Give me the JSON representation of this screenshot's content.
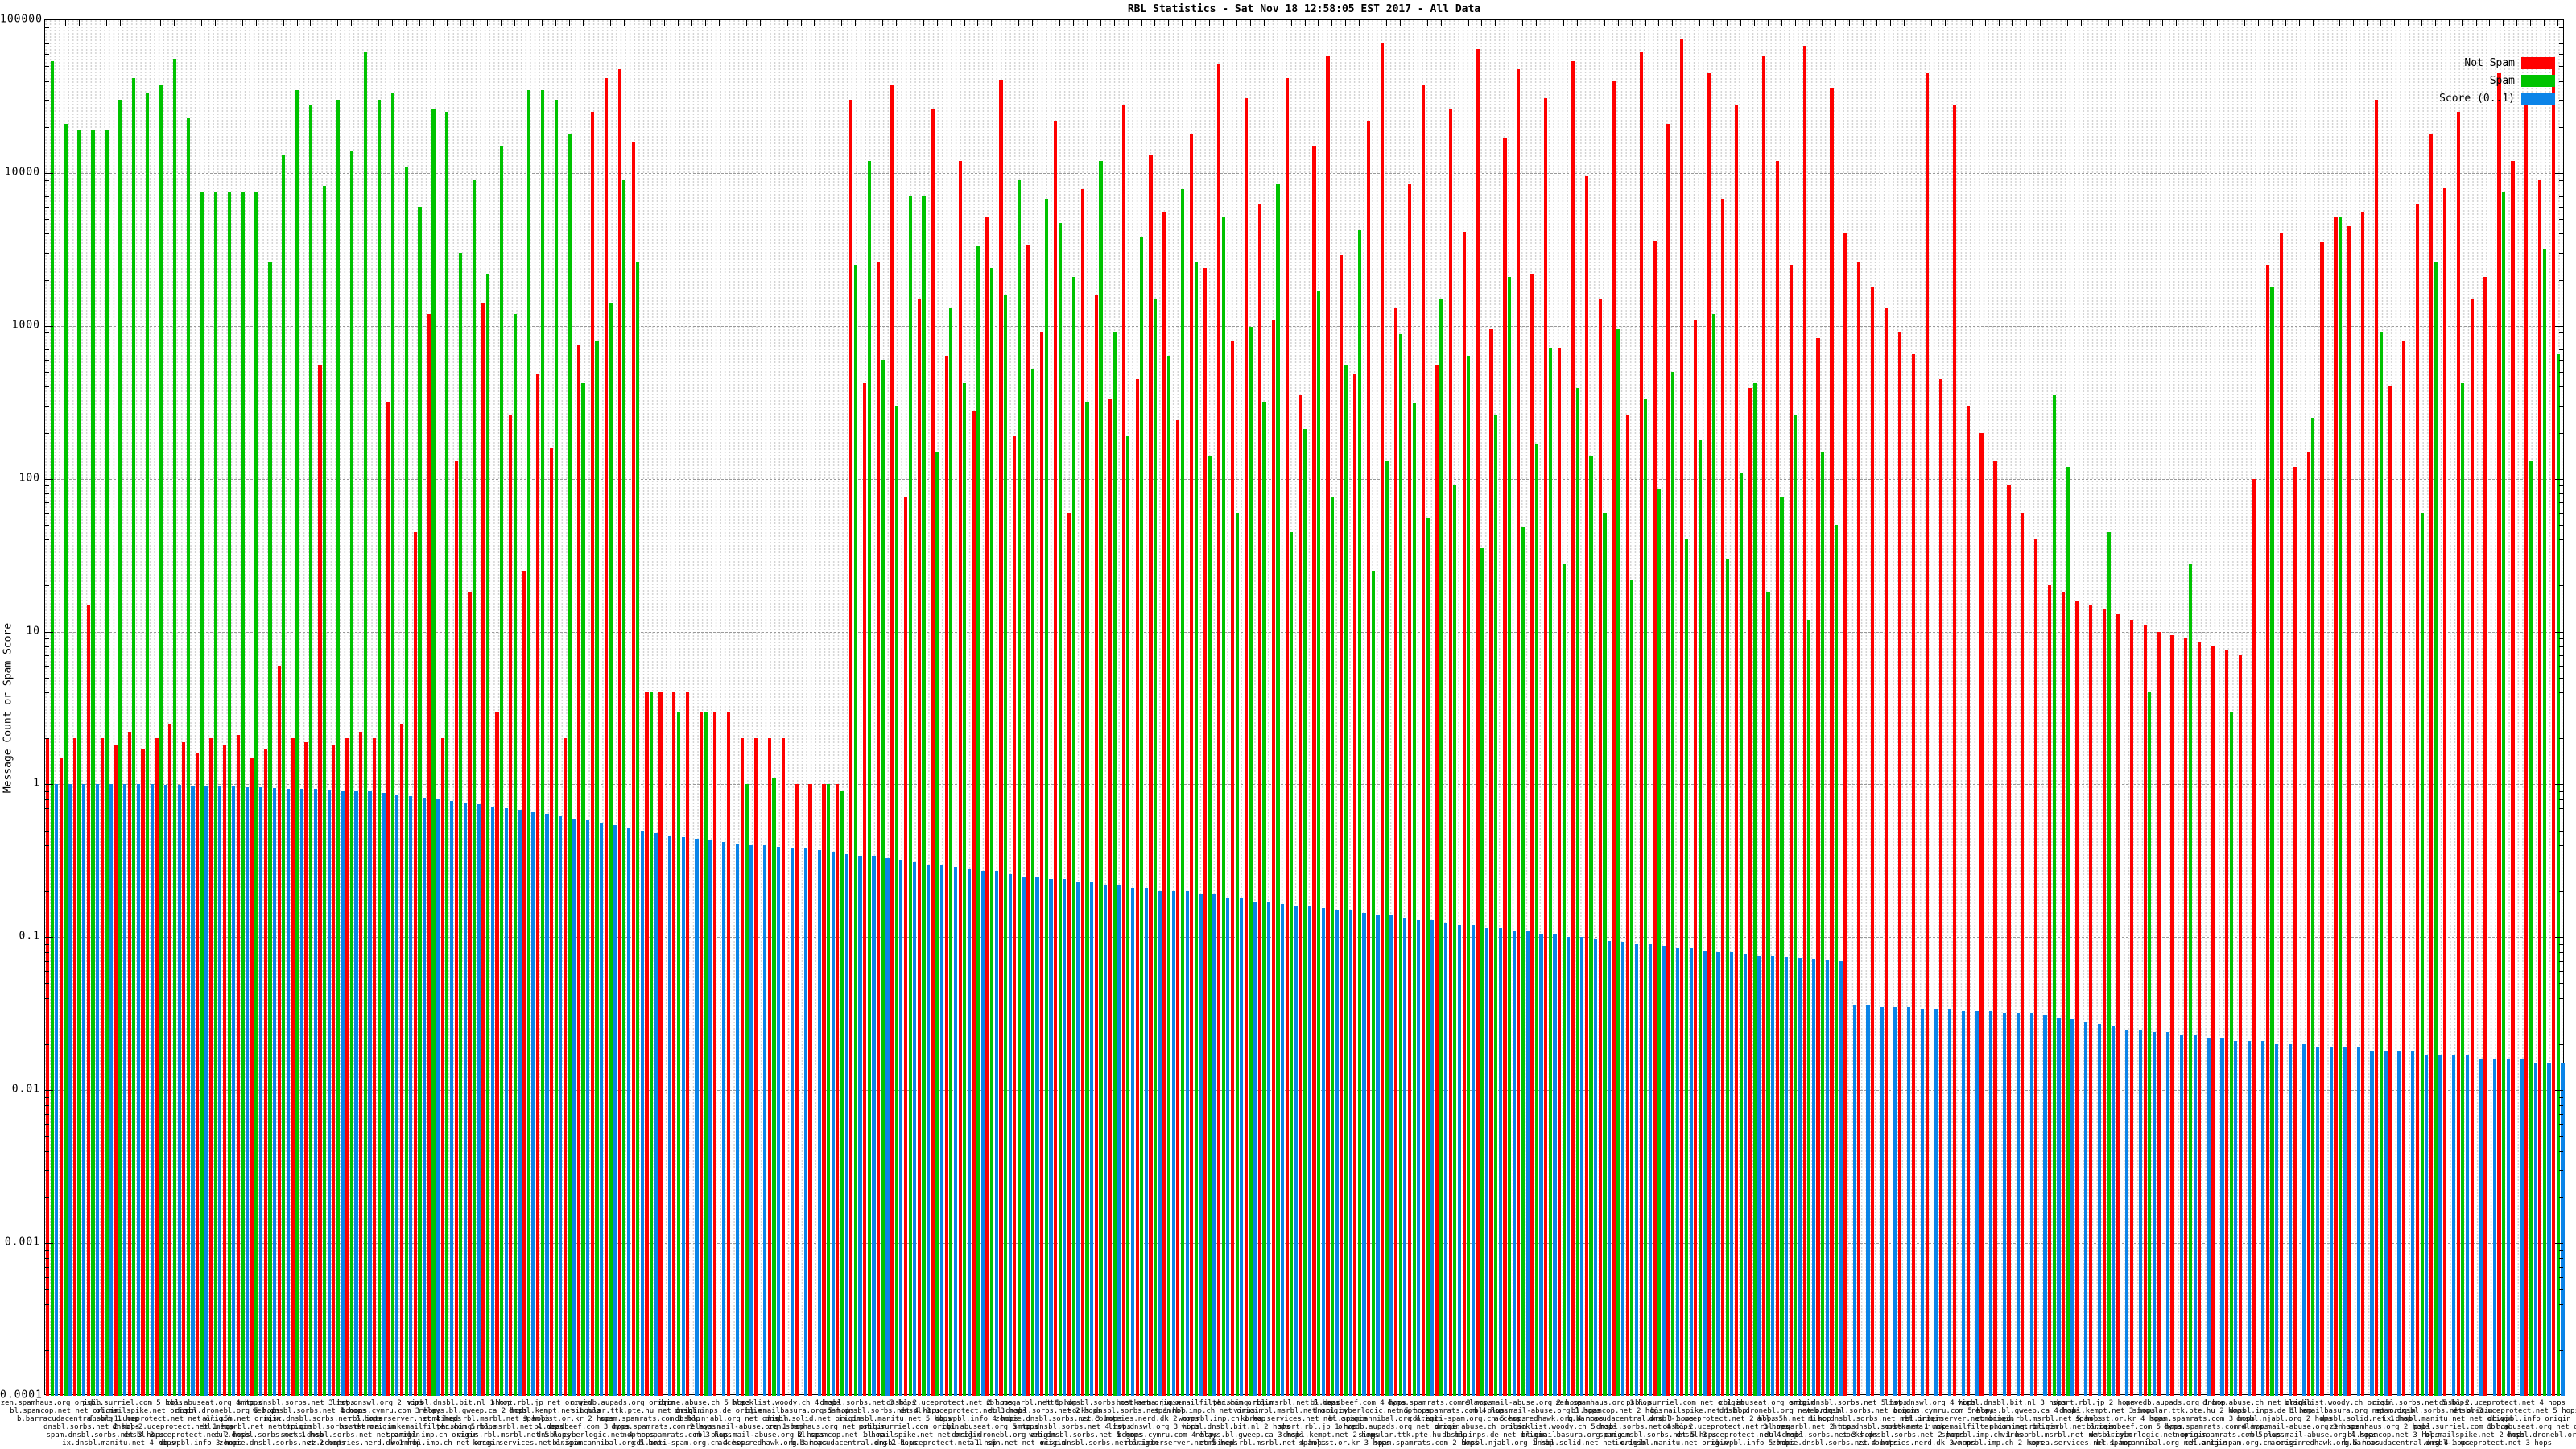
{
  "title": "RBL Statistics - Sat Nov 18 12:58:05 EST 2017 - All Data",
  "y_axis": {
    "label": "Message Count or Spam Score",
    "tick_labels": [
      "100000",
      "10000",
      "1000",
      "100",
      "10",
      "1",
      "0.1",
      "0.01",
      "0.001",
      "0.0001"
    ]
  },
  "legend": [
    {
      "label": "Not Spam",
      "color": "#ff0000"
    },
    {
      "label": "Spam",
      "color": "#00c300"
    },
    {
      "label": "Score (0..1)",
      "color": "#0b84e8"
    }
  ],
  "chart_data": {
    "type": "bar",
    "title": "RBL Statistics - Sat Nov 18 12:58:05 EST 2017 - All Data",
    "ylabel": "Message Count or Spam Score",
    "y_scale": "log10",
    "ylim": [
      0.0001,
      100000
    ],
    "grid": "dotted vertical per bar, dashed horizontal per decade",
    "legend_position": "top-right inside plot",
    "bar_colors": {
      "not_spam": "#ff0000",
      "spam": "#00c300",
      "score": "#0b84e8"
    },
    "x_label_pool": [
      "zen.spamhaus.org",
      "bl.spamcop.net",
      "b.barracudacentral.org",
      "dnsbl.sorbs.net",
      "spam.dnsbl.sorbs.net",
      "ix.dnsbl.manitu.net",
      "psbl.surriel.com",
      "bl.mailspike.net",
      "dnsbl-1.uceprotect.net",
      "dnsbl-2.uceprotect.net",
      "dnsbl-3.uceprotect.net",
      "db.wpbl.info",
      "cbl.abuseat.org",
      "dnsbl.dronebl.org",
      "all.s5h.net",
      "rbl.megarbl.net",
      "dul.dnsbl.sorbs.net",
      "zombie.dnsbl.sorbs.net",
      "smtp.dnsbl.sorbs.net",
      "web.dnsbl.sorbs.net",
      "misc.dnsbl.sorbs.net",
      "http.dnsbl.sorbs.net",
      "socks.dnsbl.sorbs.net",
      "zz.countries.nerd.dk",
      "list.dnswl.org",
      "bogons.cymru.com",
      "rbl.interserver.net",
      "hostkarma.junkemailfilter.com",
      "spamrbl.imp.ch",
      "wormrbl.imp.ch",
      "virbl.dnsbl.bit.nl",
      "relays.bl.gweep.ca",
      "combined.rbl.msrbl.net",
      "phishing.rbl.msrbl.net",
      "virus.rbl.msrbl.net",
      "korea.services.net",
      "short.rbl.jp",
      "dnsbl.kempt.net",
      "spamlist.or.kr",
      "bl.deadbeef.com",
      "dnsbl.cyberlogic.net",
      "bl.spamcannibal.org",
      "orvedb.aupads.org",
      "singular.ttk.pte.hu",
      "spam.spamrats.com",
      "dyna.spamrats.com",
      "noptr.spamrats.com",
      "cdl.anti-spam.org.cn",
      "drone.abuse.ch",
      "dnsbl.inps.de",
      "dnsbl.njabl.org",
      "relays.mail-abuse.org",
      "rbl-plus.mail-abuse.org",
      "access.redhawk.org",
      "blacklist.woody.ch",
      "bl.emailbasura.org",
      "dnsbl.solid.net"
    ],
    "x_label_qualifiers": [
      "origin",
      "net origin",
      "1 hop",
      "2 hops",
      "3 hops",
      "4 hops",
      "5 hops"
    ],
    "series": [
      {
        "name": "Not Spam",
        "color": "#ff0000",
        "values": [
          2,
          1.5,
          2,
          15,
          2,
          1.8,
          2.2,
          1.7,
          2,
          2.5,
          1.9,
          1.6,
          2,
          1.8,
          2.1,
          1.5,
          1.7,
          6,
          2,
          1.9,
          560,
          1.8,
          2,
          2.2,
          2,
          320,
          2.5,
          45,
          1200,
          2,
          130,
          18,
          1400,
          3,
          260,
          25,
          480,
          160,
          2,
          750,
          25000,
          42000,
          48000,
          16000,
          4,
          4,
          4,
          4,
          3,
          3,
          3,
          2,
          2,
          2,
          2,
          1,
          1,
          1,
          1,
          30000,
          420,
          2600,
          38000,
          75,
          1500,
          26000,
          640,
          12000,
          280,
          5200,
          41000,
          190,
          3400,
          900,
          22000,
          60,
          7800,
          1600,
          330,
          28000,
          450,
          13000,
          5600,
          240,
          18000,
          2400,
          52000,
          800,
          31000,
          6200,
          1100,
          42000,
          350,
          15000,
          58000,
          2900,
          480,
          22000,
          70000,
          1300,
          8500,
          38000,
          560,
          26000,
          4100,
          65000,
          950,
          17000,
          48000,
          2200,
          31000,
          720,
          54000,
          9500,
          1500,
          40000,
          260,
          62000,
          3600,
          21000,
          75000,
          1100,
          45000,
          6800,
          28000,
          390,
          58000,
          12000,
          2500,
          68000,
          830,
          36000,
          4000,
          2600,
          1800,
          1300,
          900,
          650,
          45000,
          450,
          28000,
          300,
          200,
          130,
          90,
          60,
          40,
          20,
          18,
          16,
          15,
          14,
          13,
          12,
          11,
          10,
          9.5,
          9,
          8.5,
          8,
          7.5,
          7,
          100,
          2500,
          4000,
          120,
          150,
          3500,
          5200,
          4500,
          5600,
          30000,
          400,
          800,
          6200,
          18000,
          8000,
          25000,
          1500,
          2100,
          45000,
          12000,
          31000,
          9000,
          55000
        ]
      },
      {
        "name": "Spam",
        "color": "#00c300",
        "values": [
          54000,
          21000,
          19000,
          19000,
          19000,
          30000,
          42000,
          33000,
          38000,
          56000,
          23000,
          7600,
          7600,
          7600,
          7600,
          7600,
          2600,
          13000,
          35000,
          28000,
          8200,
          30000,
          14000,
          62000,
          30000,
          33000,
          11000,
          6000,
          26000,
          25000,
          3000,
          9000,
          2200,
          15000,
          1200,
          35000,
          35000,
          30000,
          18000,
          420,
          800,
          1400,
          9000,
          2600,
          4,
          0,
          3,
          0,
          3,
          0,
          0,
          1,
          0,
          1.1,
          0,
          0,
          0,
          1,
          0.9,
          2500,
          12000,
          600,
          300,
          7000,
          7100,
          150,
          1300,
          420,
          3300,
          2400,
          1600,
          9000,
          520,
          6800,
          4700,
          2100,
          320,
          12000,
          900,
          190,
          3800,
          1500,
          640,
          7800,
          2600,
          140,
          5200,
          60,
          980,
          320,
          8500,
          45,
          210,
          1700,
          75,
          560,
          4200,
          25,
          130,
          880,
          310,
          55,
          1500,
          90,
          640,
          35,
          260,
          2100,
          48,
          170,
          720,
          28,
          390,
          140,
          60,
          950,
          22,
          330,
          85,
          500,
          40,
          180,
          1200,
          30,
          110,
          420,
          18,
          75,
          260,
          12,
          150,
          50,
          0,
          0,
          0,
          0,
          0,
          0,
          0,
          0,
          0,
          0,
          0,
          0,
          0,
          0,
          0,
          350,
          120,
          0,
          0,
          45,
          0,
          0,
          4,
          0,
          0,
          28,
          0,
          0,
          3,
          0,
          0,
          1800,
          0,
          0,
          250,
          0,
          5200,
          0,
          0,
          900,
          0,
          0,
          60,
          2600,
          0,
          420,
          0,
          0,
          7500,
          0,
          130,
          3200,
          650
        ]
      },
      {
        "name": "Score (0..1)",
        "color": "#0b84e8",
        "values": [
          1,
          1,
          1,
          1,
          1,
          1,
          1,
          1,
          0.99,
          0.99,
          0.98,
          0.98,
          0.97,
          0.97,
          0.96,
          0.96,
          0.95,
          0.94,
          0.93,
          0.93,
          0.92,
          0.91,
          0.9,
          0.9,
          0.88,
          0.86,
          0.84,
          0.82,
          0.8,
          0.78,
          0.76,
          0.74,
          0.72,
          0.7,
          0.68,
          0.66,
          0.64,
          0.62,
          0.6,
          0.58,
          0.56,
          0.54,
          0.52,
          0.5,
          0.48,
          0.46,
          0.45,
          0.44,
          0.43,
          0.42,
          0.41,
          0.4,
          0.4,
          0.39,
          0.38,
          0.38,
          0.37,
          0.36,
          0.35,
          0.34,
          0.34,
          0.33,
          0.32,
          0.31,
          0.3,
          0.3,
          0.29,
          0.28,
          0.27,
          0.27,
          0.26,
          0.25,
          0.25,
          0.24,
          0.24,
          0.23,
          0.23,
          0.22,
          0.22,
          0.21,
          0.21,
          0.2,
          0.2,
          0.2,
          0.19,
          0.19,
          0.18,
          0.18,
          0.17,
          0.17,
          0.165,
          0.16,
          0.16,
          0.155,
          0.15,
          0.15,
          0.145,
          0.14,
          0.14,
          0.135,
          0.13,
          0.13,
          0.125,
          0.12,
          0.12,
          0.115,
          0.115,
          0.11,
          0.11,
          0.105,
          0.105,
          0.1,
          0.1,
          0.098,
          0.095,
          0.093,
          0.09,
          0.09,
          0.088,
          0.085,
          0.085,
          0.082,
          0.08,
          0.08,
          0.078,
          0.076,
          0.075,
          0.074,
          0.073,
          0.072,
          0.071,
          0.07,
          0.036,
          0.036,
          0.035,
          0.035,
          0.035,
          0.034,
          0.034,
          0.034,
          0.033,
          0.033,
          0.033,
          0.032,
          0.032,
          0.032,
          0.031,
          0.03,
          0.029,
          0.028,
          0.027,
          0.026,
          0.025,
          0.025,
          0.024,
          0.024,
          0.023,
          0.023,
          0.022,
          0.022,
          0.021,
          0.021,
          0.021,
          0.02,
          0.02,
          0.02,
          0.019,
          0.019,
          0.019,
          0.019,
          0.018,
          0.018,
          0.018,
          0.018,
          0.017,
          0.017,
          0.017,
          0.017,
          0.016,
          0.016,
          0.016,
          0.016,
          0.015,
          0.015,
          0.015
        ]
      }
    ]
  }
}
